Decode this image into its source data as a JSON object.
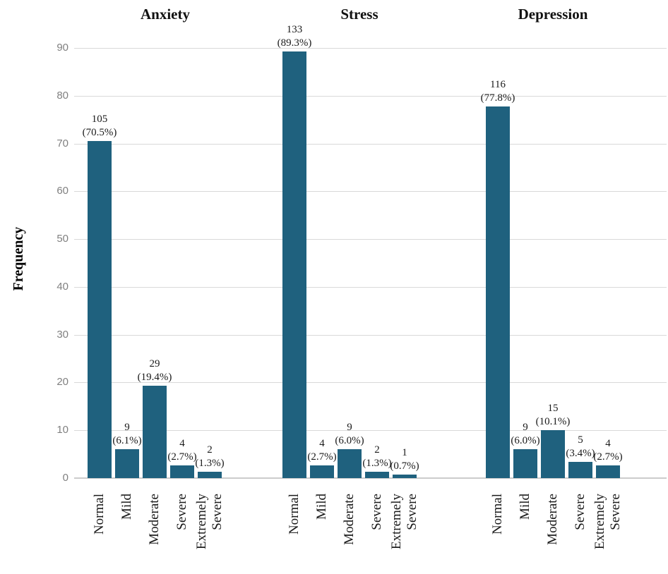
{
  "colors": {
    "bar": "#1f617e",
    "gridline": "#d9d9d9",
    "axis_line": "#cccccc",
    "tick_text": "#808080",
    "label_text": "#1a1a1a"
  },
  "chart_data": {
    "type": "bar",
    "ylabel": "Frequency",
    "ylim": [
      0,
      90
    ],
    "yticks": [
      0,
      10,
      20,
      30,
      40,
      50,
      60,
      70,
      80,
      90
    ],
    "grid": "horizontal",
    "legend_position": "none",
    "bar_scale_unit": "percent",
    "categories": [
      "Normal",
      "Mild",
      "Moderate",
      "Severe",
      "Extremely Severe"
    ],
    "groups": [
      {
        "title": "Anxiety",
        "bars": [
          {
            "category": "Normal",
            "count": 105,
            "pct": "70.5"
          },
          {
            "category": "Mild",
            "count": 9,
            "pct": "6.1"
          },
          {
            "category": "Moderate",
            "count": 29,
            "pct": "19.4"
          },
          {
            "category": "Severe",
            "count": 4,
            "pct": "2.7"
          },
          {
            "category": "Extremely Severe",
            "count": 2,
            "pct": "1.3"
          }
        ]
      },
      {
        "title": "Stress",
        "bars": [
          {
            "category": "Normal",
            "count": 133,
            "pct": "89.3"
          },
          {
            "category": "Mild",
            "count": 4,
            "pct": "2.7"
          },
          {
            "category": "Moderate",
            "count": 9,
            "pct": "6.0"
          },
          {
            "category": "Severe",
            "count": 2,
            "pct": "1.3"
          },
          {
            "category": "Extremely Severe",
            "count": 1,
            "pct": "0.7"
          }
        ]
      },
      {
        "title": "Depression",
        "bars": [
          {
            "category": "Normal",
            "count": 116,
            "pct": "77.8"
          },
          {
            "category": "Mild",
            "count": 9,
            "pct": "6.0"
          },
          {
            "category": "Moderate",
            "count": 15,
            "pct": "10.1"
          },
          {
            "category": "Severe",
            "count": 5,
            "pct": "3.4"
          },
          {
            "category": "Extremely Severe",
            "count": 4,
            "pct": "2.7"
          }
        ]
      }
    ]
  }
}
